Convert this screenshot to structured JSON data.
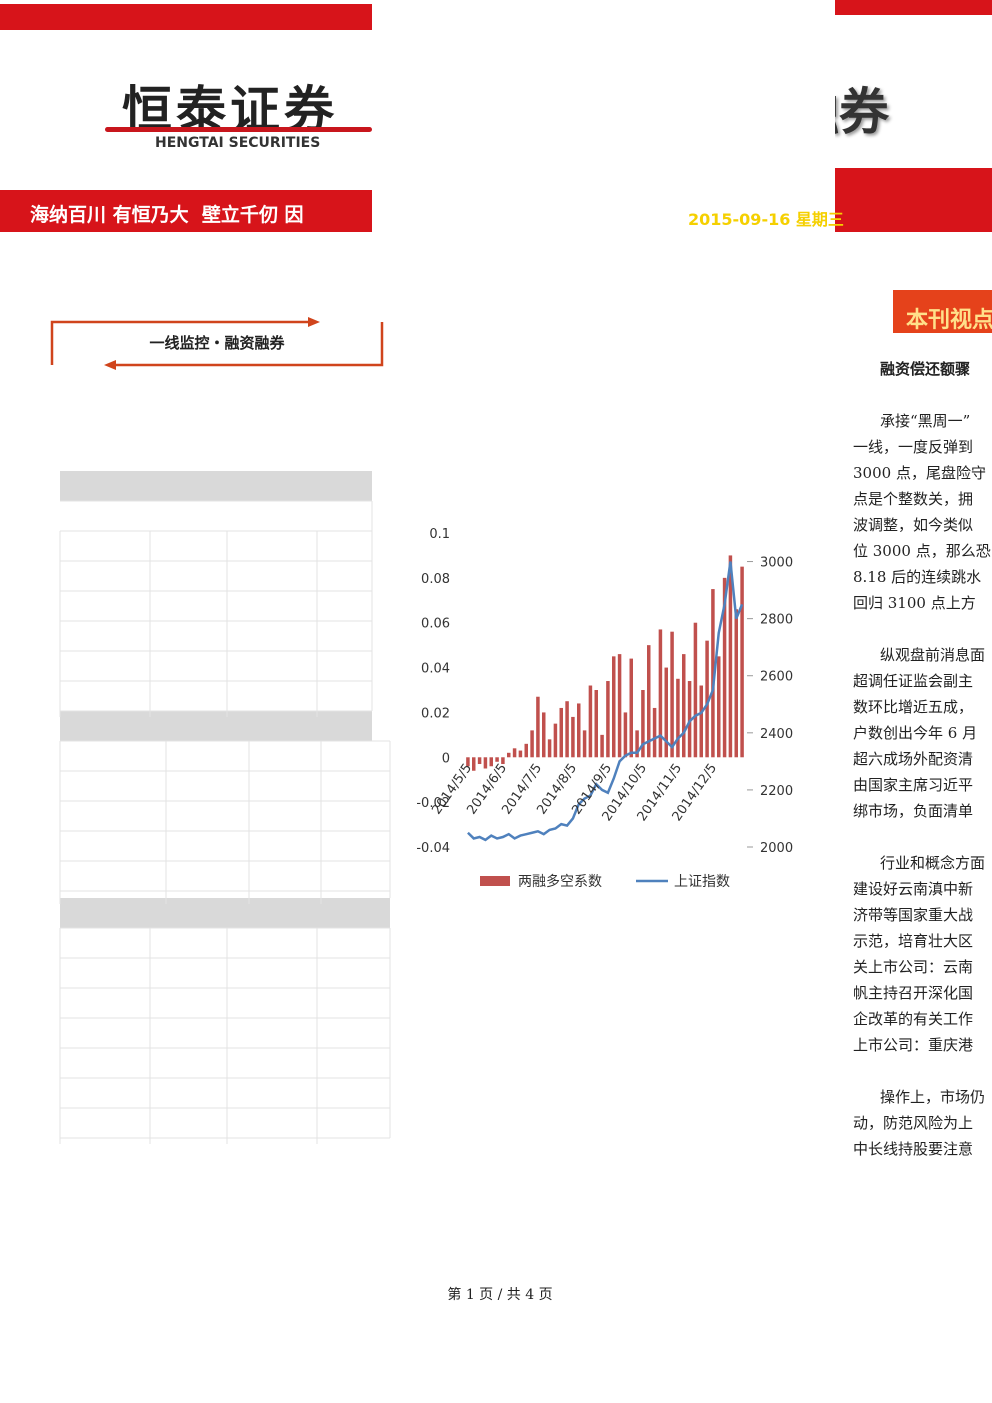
{
  "header": {
    "logo": "恒泰证券",
    "logo_en": "HENGTAI SECURITIES",
    "slogan": "海纳百川 有恒乃大  壁立千仞 因",
    "right_title": "融券",
    "date": "2015-09-16 星期三"
  },
  "section_label": "一线监控・融资融券",
  "sidebar": {
    "heading": "本刊视点",
    "article_title": "融资偿还额骤",
    "paragraphs": [
      [
        "承接“黑周一”",
        "一线，一度反弹到",
        "3000 点，尾盘险守",
        "点是个整数关，拥",
        "波调整，如今类似",
        "位 3000 点，那么恐",
        "8.18 后的连续跳水",
        "回归 3100 点上方"
      ],
      [
        "纵观盘前消息面",
        "超调任证监会副主",
        "数环比增近五成，",
        "户数创出今年 6 月",
        "超六成场外配资清",
        "由国家主席习近平",
        "绑市场，负面清单"
      ],
      [
        "行业和概念方面",
        "建设好云南滇中新",
        "济带等国家重大战",
        "示范，培育壮大区",
        "关上市公司：云南",
        "帆主持召开深化国",
        "企改革的有关工作",
        "上市公司：重庆港"
      ],
      [
        "操作上，市场仍",
        "动，防范风险为上",
        "中长线持股要注意"
      ]
    ]
  },
  "chart_data": {
    "type": "bar-line",
    "categories": [
      "2014/5/5",
      null,
      null,
      null,
      null,
      null,
      "2014/6/5",
      null,
      null,
      null,
      null,
      null,
      "2014/7/5",
      null,
      null,
      null,
      null,
      null,
      "2014/8/5",
      null,
      null,
      null,
      null,
      null,
      "2014/9/5",
      null,
      null,
      null,
      null,
      null,
      "2014/10/5",
      null,
      null,
      null,
      null,
      null,
      "2014/11/5",
      null,
      null,
      null,
      null,
      null,
      "2014/12/5",
      null,
      null,
      null,
      null,
      null
    ],
    "series": [
      {
        "name": "两融多空系数",
        "color": "#c0504d",
        "type": "bar",
        "values": [
          -0.004,
          -0.006,
          -0.003,
          -0.005,
          -0.004,
          -0.002,
          -0.003,
          0.002,
          0.004,
          0.003,
          0.006,
          0.012,
          0.027,
          0.02,
          0.008,
          0.015,
          0.022,
          0.025,
          0.018,
          0.024,
          0.012,
          0.032,
          0.03,
          0.01,
          0.034,
          0.045,
          0.046,
          0.02,
          0.044,
          0.012,
          0.03,
          0.05,
          0.022,
          0.057,
          0.04,
          0.056,
          0.035,
          0.046,
          0.034,
          0.06,
          0.032,
          0.052,
          0.075,
          0.045,
          0.08,
          0.09,
          0.066,
          0.085
        ]
      },
      {
        "name": "上证指数",
        "color": "#4f81bd",
        "type": "line",
        "axis": "y2",
        "values": [
          2050,
          2030,
          2035,
          2025,
          2040,
          2030,
          2035,
          2045,
          2030,
          2040,
          2045,
          2050,
          2055,
          2045,
          2060,
          2065,
          2080,
          2075,
          2100,
          2150,
          2170,
          2180,
          2220,
          2200,
          2190,
          2240,
          2300,
          2320,
          2330,
          2330,
          2360,
          2370,
          2380,
          2390,
          2370,
          2350,
          2380,
          2400,
          2440,
          2460,
          2470,
          2500,
          2550,
          2750,
          2850,
          3000,
          2800,
          2850
        ]
      }
    ],
    "ylim": [
      -0.04,
      0.1
    ],
    "yticks": [
      -0.04,
      -0.02,
      0,
      0.02,
      0.04,
      0.06,
      0.08,
      0.1
    ],
    "y2lim": [
      2000,
      3100
    ],
    "y2ticks": [
      2000,
      2200,
      2400,
      2600,
      2800,
      3000
    ]
  },
  "footer": "第 1 页 / 共 4 页"
}
